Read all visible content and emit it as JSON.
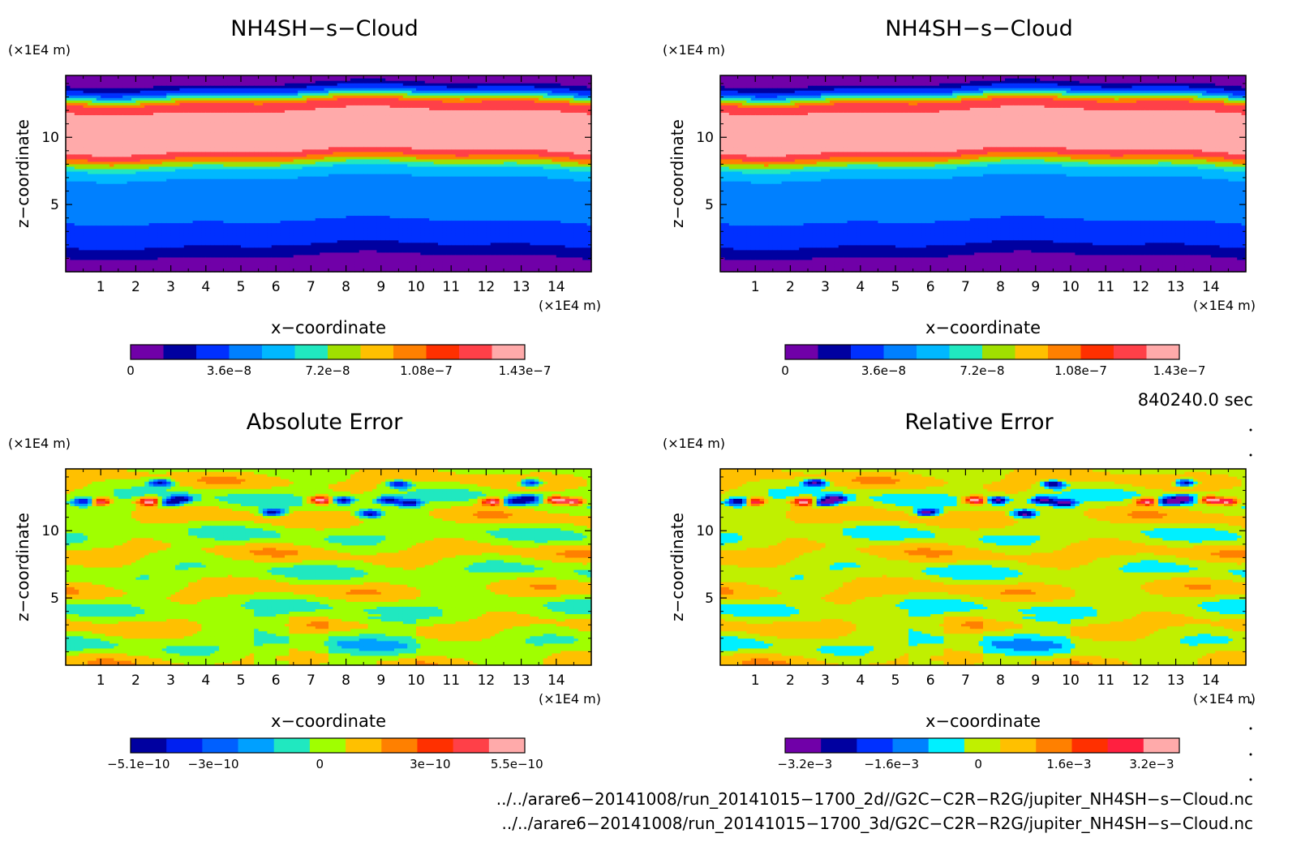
{
  "chart_data": [
    {
      "type": "heatmap",
      "title": "NH4SH−s−Cloud",
      "xlabel": "x−coordinate",
      "ylabel": "z−coordinate",
      "x_unit": "(×1E4 m)",
      "y_unit": "(×1E4 m)",
      "xlim": [
        0,
        15
      ],
      "ylim": [
        0,
        14.6
      ],
      "x_ticks": [
        1,
        2,
        3,
        4,
        5,
        6,
        7,
        8,
        9,
        10,
        11,
        12,
        13,
        14
      ],
      "y_ticks": [
        5,
        10
      ],
      "field": "cloud",
      "colors": [
        "#7000a8",
        "#0000a0",
        "#0030ff",
        "#0080ff",
        "#00b8ff",
        "#20e8c0",
        "#a0e000",
        "#ffc000",
        "#ff8000",
        "#ff3000",
        "#ff4048",
        "#ffaaaa"
      ],
      "colorbar_labels": [
        {
          "pos": 0,
          "text": "0"
        },
        {
          "pos": 0.25,
          "text": "3.6e−8"
        },
        {
          "pos": 0.5,
          "text": "7.2e−8"
        },
        {
          "pos": 0.75,
          "text": "1.08e−7"
        },
        {
          "pos": 1.0,
          "text": "1.43e−7"
        }
      ],
      "levels_min": 0,
      "levels_max": 1.43e-07
    },
    {
      "type": "heatmap",
      "title": "NH4SH−s−Cloud",
      "xlabel": "x−coordinate",
      "ylabel": "z−coordinate",
      "x_unit": "(×1E4 m)",
      "y_unit": "(×1E4 m)",
      "xlim": [
        0,
        15
      ],
      "ylim": [
        0,
        14.6
      ],
      "x_ticks": [
        1,
        2,
        3,
        4,
        5,
        6,
        7,
        8,
        9,
        10,
        11,
        12,
        13,
        14
      ],
      "y_ticks": [
        5,
        10
      ],
      "field": "cloud",
      "colors": [
        "#7000a8",
        "#0000a0",
        "#0030ff",
        "#0080ff",
        "#00b8ff",
        "#20e8c0",
        "#a0e000",
        "#ffc000",
        "#ff8000",
        "#ff3000",
        "#ff4048",
        "#ffaaaa"
      ],
      "colorbar_labels": [
        {
          "pos": 0,
          "text": "0"
        },
        {
          "pos": 0.25,
          "text": "3.6e−8"
        },
        {
          "pos": 0.5,
          "text": "7.2e−8"
        },
        {
          "pos": 0.75,
          "text": "1.08e−7"
        },
        {
          "pos": 1.0,
          "text": "1.43e−7"
        }
      ],
      "levels_min": 0,
      "levels_max": 1.43e-07
    },
    {
      "type": "heatmap",
      "title": "Absolute Error",
      "xlabel": "x−coordinate",
      "ylabel": "z−coordinate",
      "x_unit": "(×1E4 m)",
      "y_unit": "(×1E4 m)",
      "xlim": [
        0,
        15
      ],
      "ylim": [
        0,
        14.6
      ],
      "x_ticks": [
        1,
        2,
        3,
        4,
        5,
        6,
        7,
        8,
        9,
        10,
        11,
        12,
        13,
        14
      ],
      "y_ticks": [
        5,
        10
      ],
      "field": "abs_error",
      "colors": [
        "#0000a0",
        "#0020f0",
        "#0060ff",
        "#00a0ff",
        "#20e8c0",
        "#a0ff00",
        "#ffc000",
        "#ff8000",
        "#ff3000",
        "#ff4048",
        "#ffaaaa"
      ],
      "colorbar_labels": [
        {
          "pos": 0.02,
          "text": "−5.1e−10"
        },
        {
          "pos": 0.21,
          "text": "−3e−10"
        },
        {
          "pos": 0.48,
          "text": "0"
        },
        {
          "pos": 0.76,
          "text": "3e−10"
        },
        {
          "pos": 0.98,
          "text": "5.5e−10"
        }
      ],
      "levels_min": -5.1e-10,
      "levels_max": 5.5e-10
    },
    {
      "type": "heatmap",
      "title": "Relative Error",
      "xlabel": "x−coordinate",
      "ylabel": "z−coordinate",
      "x_unit": "(×1E4 m)",
      "y_unit": "(×1E4 m)",
      "xlim": [
        0,
        15
      ],
      "ylim": [
        0,
        14.6
      ],
      "x_ticks": [
        1,
        2,
        3,
        4,
        5,
        6,
        7,
        8,
        9,
        10,
        11,
        12,
        13,
        14
      ],
      "y_ticks": [
        5,
        10
      ],
      "field": "rel_error",
      "colors": [
        "#7000a8",
        "#0000a0",
        "#0030ff",
        "#0080ff",
        "#00f0ff",
        "#c0f000",
        "#ffc000",
        "#ff8000",
        "#ff3000",
        "#ff2040",
        "#ffaaaa"
      ],
      "colorbar_labels": [
        {
          "pos": 0.05,
          "text": "−3.2e−3"
        },
        {
          "pos": 0.27,
          "text": "−1.6e−3"
        },
        {
          "pos": 0.49,
          "text": "0"
        },
        {
          "pos": 0.72,
          "text": "1.6e−3"
        },
        {
          "pos": 0.93,
          "text": "3.2e−3"
        }
      ],
      "levels_min": -0.0032,
      "levels_max": 0.0032
    }
  ],
  "time_label": "840240.0 sec",
  "file_paths": [
    "../../arare6−20141008/run_20141015−1700_2d//G2C−C2R−R2G/jupiter_NH4SH−s−Cloud.nc",
    "../../arare6−20141008/run_20141015−1700_3d/G2C−C2R−R2G/jupiter_NH4SH−s−Cloud.nc"
  ]
}
